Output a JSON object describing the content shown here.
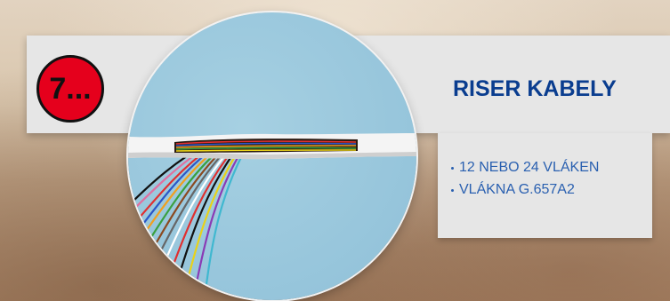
{
  "badge": {
    "label": "7..."
  },
  "product": {
    "title": "RISER KABELY",
    "features": [
      "12 NEBO 24 VLÁKEN",
      "VLÁKNA G.657A2"
    ]
  },
  "colors": {
    "accent_red": "#e5001c",
    "title_blue": "#0a3d8f",
    "text_blue": "#2a60b0",
    "panel_gray": "#e6e6e6",
    "photo_bg": "#8fc0d8"
  }
}
